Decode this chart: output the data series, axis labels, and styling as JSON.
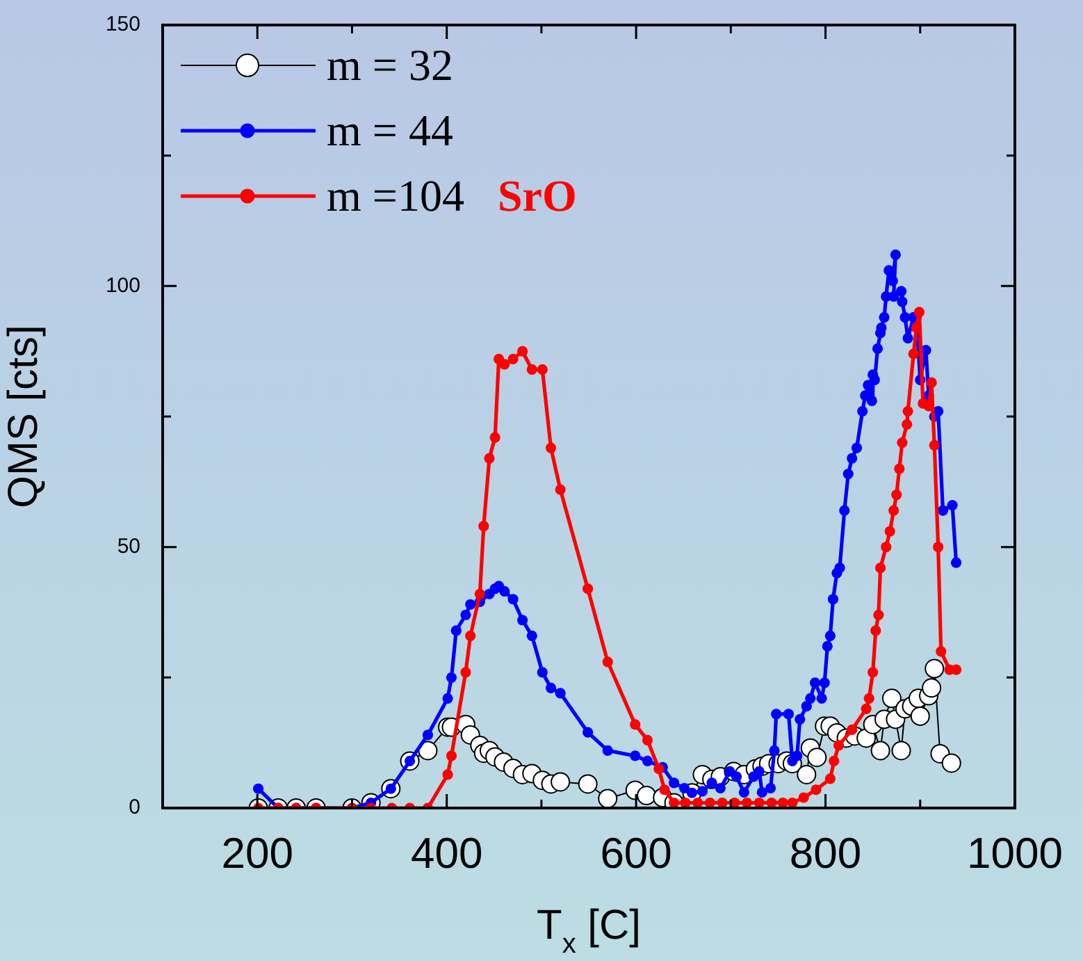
{
  "chart_data": {
    "type": "line",
    "xlabel": "T$_{x}$ [C]",
    "ylabel": "QMS [cts]",
    "xlim": [
      100,
      1000
    ],
    "ylim": [
      0,
      150
    ],
    "xticks": [
      200,
      {
        "value": 300,
        "label": null
      },
      400,
      {
        "value": 500,
        "label": null
      },
      600,
      {
        "value": 700,
        "label": null
      },
      800,
      {
        "value": 900,
        "label": null
      },
      1000
    ],
    "yticks": [
      0,
      {
        "value": 25,
        "label": null
      },
      50,
      {
        "value": 75,
        "label": null
      },
      100,
      {
        "value": 125,
        "label": null
      },
      150
    ],
    "grid": false,
    "legend": "top left",
    "marker": "circle",
    "line_style": "solid",
    "annotations": [
      "SrO"
    ],
    "series": [
      {
        "name": "m = 32",
        "color": "#ffffff",
        "x": [
          201,
          222,
          241,
          262,
          300,
          320,
          341,
          361,
          380,
          401,
          405,
          420,
          425,
          435,
          439,
          445,
          451,
          460,
          470,
          480,
          490,
          501,
          510,
          520,
          549,
          570,
          599,
          611,
          628,
          640,
          659,
          670,
          680,
          689,
          703,
          714,
          726,
          733,
          740,
          750,
          759,
          765,
          780,
          784,
          791,
          799,
          805,
          812,
          822,
          831,
          843,
          850,
          858,
          862,
          870,
          874,
          880,
          884,
          891,
          898,
          900,
          909,
          912,
          915,
          921,
          933
        ],
        "values": [
          0,
          0,
          0,
          0,
          0,
          1,
          3.7,
          9,
          11,
          15.5,
          15.5,
          16,
          14,
          12,
          10.5,
          11,
          9.8,
          8.8,
          7.6,
          6.4,
          6.6,
          5.3,
          4.6,
          5,
          4.6,
          1.8,
          3.4,
          2.4,
          2,
          1,
          2.9,
          6.4,
          5.5,
          6,
          7,
          6.4,
          7.5,
          8,
          8.5,
          8.5,
          9,
          8.5,
          6.4,
          11.5,
          9.7,
          15.7,
          15.7,
          14.4,
          13.4,
          13.8,
          13.4,
          16,
          11,
          17,
          21,
          17,
          11,
          19,
          19.5,
          21,
          17.6,
          21.5,
          23,
          26.7,
          10.4,
          8.6
        ]
      },
      {
        "name": "m = 44",
        "color": "#0000ff",
        "x": [
          201,
          222,
          241,
          262,
          300,
          320,
          341,
          361,
          380,
          401,
          405,
          410,
          420,
          425,
          435,
          445,
          451,
          455,
          461,
          470,
          480,
          490,
          501,
          510,
          520,
          549,
          570,
          599,
          612,
          628,
          640,
          651,
          659,
          670,
          680,
          689,
          699,
          706,
          714,
          724,
          730,
          733,
          742,
          746,
          748,
          761,
          765,
          770,
          773,
          780,
          784,
          789,
          796,
          799,
          802,
          805,
          808,
          812,
          815,
          820,
          824,
          828,
          833,
          839,
          842,
          845,
          849,
          850,
          852,
          855,
          858,
          859,
          862,
          864,
          867,
          871,
          874,
          872,
          880,
          881,
          884,
          887,
          893,
          896,
          900,
          906,
          909,
          915,
          919,
          924,
          934,
          938
        ],
        "values": [
          3.7,
          0,
          0,
          0,
          0,
          1,
          3.7,
          9,
          14,
          21,
          25,
          34,
          37,
          39,
          39.5,
          41,
          42,
          42.5,
          41.5,
          40,
          36,
          33,
          26,
          23,
          22,
          14.5,
          11,
          10,
          9,
          7.8,
          4.8,
          3.8,
          2.9,
          3.2,
          4.8,
          3.8,
          7,
          6,
          3,
          6,
          7,
          3,
          3.8,
          11,
          18,
          18,
          9,
          10,
          17,
          19.5,
          21,
          24,
          21,
          24,
          31,
          33,
          40,
          45,
          46,
          57,
          64,
          67,
          69,
          76,
          79,
          81,
          78,
          83,
          82,
          88,
          91,
          92,
          94,
          98,
          103,
          101,
          106,
          98,
          99,
          97,
          94,
          90,
          94,
          94,
          82,
          87.7,
          79,
          75,
          76,
          57,
          58,
          47
        ]
      },
      {
        "name": "m =104",
        "color": "#ff0000",
        "x": [
          201,
          222,
          241,
          262,
          300,
          320,
          342,
          361,
          380,
          401,
          405,
          420,
          425,
          435,
          439,
          445,
          451,
          455,
          461,
          470,
          480,
          490,
          501,
          510,
          520,
          549,
          570,
          599,
          612,
          624,
          630,
          640,
          652,
          665,
          678,
          691,
          704,
          717,
          730,
          743,
          755,
          765,
          777,
          790,
          805,
          809,
          814,
          828,
          843,
          846,
          850,
          853,
          856,
          858,
          864,
          868,
          872,
          875,
          878,
          881,
          886,
          887,
          893,
          896,
          899,
          903,
          909,
          912,
          915,
          919,
          922,
          931,
          938
        ],
        "values": [
          0,
          0,
          0,
          0,
          0,
          0,
          0,
          0,
          0,
          6.4,
          10,
          26,
          33,
          41,
          54,
          67,
          71,
          86,
          85,
          86,
          87.5,
          84,
          84,
          69,
          61,
          42,
          28,
          16,
          13,
          7.5,
          3.5,
          1,
          1,
          1,
          1,
          1,
          1,
          1,
          1,
          1,
          1,
          1,
          2,
          3.5,
          5.6,
          9,
          12,
          15,
          19,
          21,
          26,
          34,
          37,
          46,
          50,
          53,
          57,
          60,
          65,
          70,
          73.5,
          76,
          87,
          92,
          95,
          77.5,
          77,
          81.5,
          69.5,
          50,
          30,
          26.5,
          26.5
        ]
      }
    ]
  }
}
